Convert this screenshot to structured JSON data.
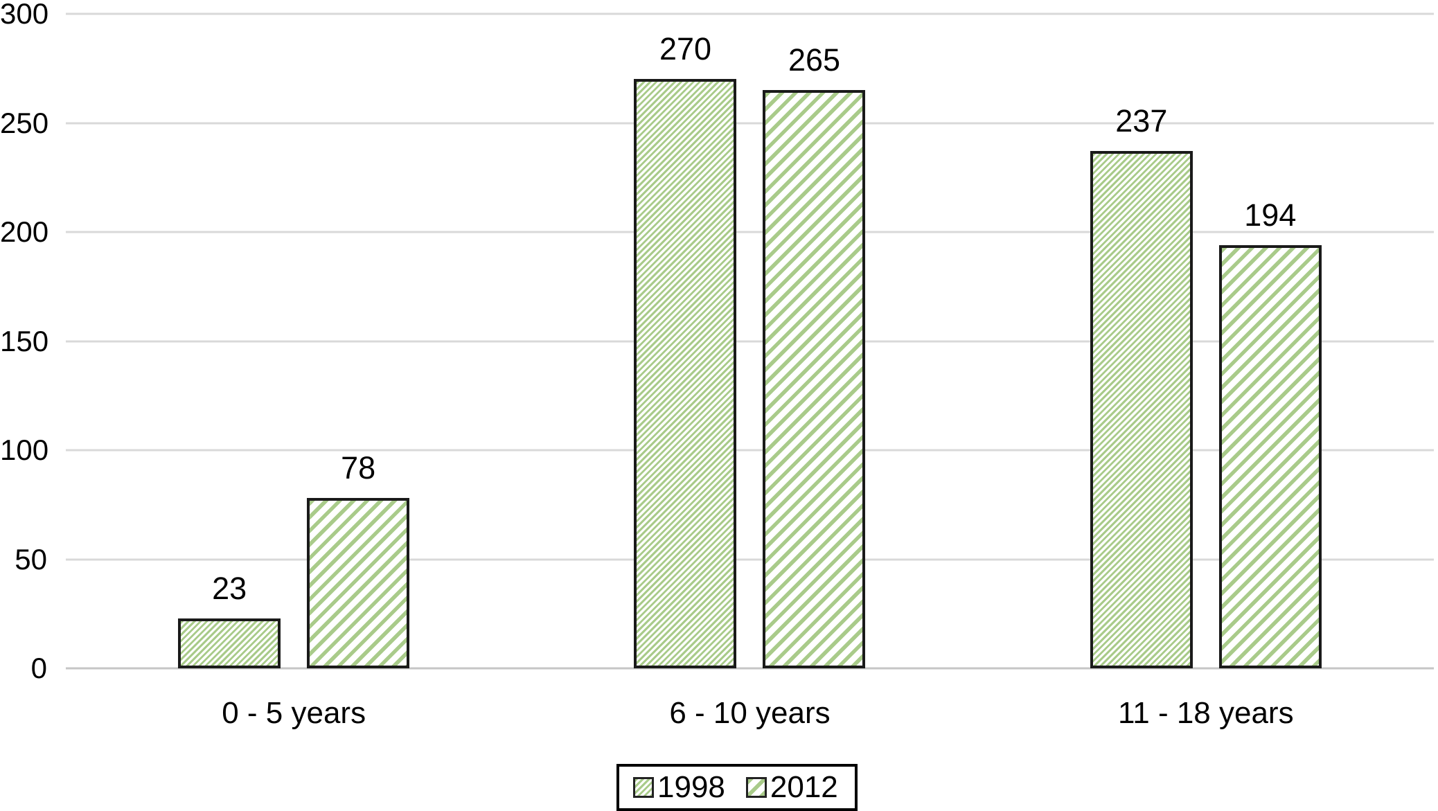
{
  "chart_data": {
    "type": "bar",
    "categories": [
      "0 - 5 years",
      "6 - 10 years",
      "11 - 18 years"
    ],
    "series": [
      {
        "name": "1998",
        "values": [
          23,
          270,
          237
        ],
        "pattern": "thin-diagonal-hatch"
      },
      {
        "name": "2012",
        "values": [
          78,
          265,
          194
        ],
        "pattern": "wide-diagonal-hatch"
      }
    ],
    "value_labels": [
      [
        23,
        270,
        237
      ],
      [
        78,
        265,
        194
      ]
    ],
    "ylim": [
      0,
      300
    ],
    "yticks": [
      0,
      50,
      100,
      150,
      200,
      250,
      300
    ],
    "grid": true,
    "legend_position": "bottom-center",
    "legend_labels": [
      "1998",
      "2012"
    ],
    "colors": {
      "bar_fill_green": "#a9cb8a",
      "bar_border": "#1a1a1a",
      "gridline": "#d9d9d9",
      "axis_line": "#c6c6c6",
      "text": "#000000",
      "background": "#ffffff",
      "legend_border": "#000000"
    }
  }
}
